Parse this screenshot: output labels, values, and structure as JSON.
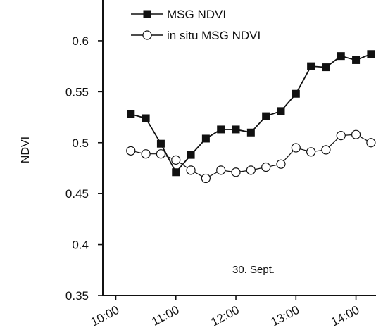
{
  "chart_data": {
    "type": "line",
    "xlabel": "",
    "ylabel": "NDVI",
    "ylim": [
      0.35,
      0.64
    ],
    "xlim": [
      "09:47",
      "14:20"
    ],
    "xticks": [
      "10:00",
      "11:00",
      "12:00",
      "13:00",
      "14:00"
    ],
    "yticks": [
      "0.35",
      "0.4",
      "0.45",
      "0.5",
      "0.55",
      "0.6"
    ],
    "grid": false,
    "legend_position": "top-left",
    "annotation": "30. Sept.",
    "series": [
      {
        "name": "MSG NDVI",
        "marker": "filled-square",
        "color": "#111111",
        "x": [
          "10:15",
          "10:30",
          "10:45",
          "11:00",
          "11:15",
          "11:30",
          "11:45",
          "12:00",
          "12:15",
          "12:30",
          "12:45",
          "13:00",
          "13:15",
          "13:30",
          "13:45",
          "14:00",
          "14:15"
        ],
        "y": [
          0.528,
          0.524,
          0.499,
          0.471,
          0.488,
          0.504,
          0.513,
          0.513,
          0.51,
          0.526,
          0.531,
          0.548,
          0.575,
          0.574,
          0.585,
          0.581,
          0.587
        ]
      },
      {
        "name": "in situ MSG NDVI",
        "marker": "open-circle",
        "color": "#111111",
        "x": [
          "10:15",
          "10:30",
          "10:45",
          "11:00",
          "11:15",
          "11:30",
          "11:45",
          "12:00",
          "12:15",
          "12:30",
          "12:45",
          "13:00",
          "13:15",
          "13:30",
          "13:45",
          "14:00",
          "14:15"
        ],
        "y": [
          0.492,
          0.489,
          0.489,
          0.483,
          0.473,
          0.465,
          0.473,
          0.471,
          0.473,
          0.476,
          0.479,
          0.495,
          0.491,
          0.493,
          0.507,
          0.508,
          0.5
        ]
      }
    ]
  }
}
